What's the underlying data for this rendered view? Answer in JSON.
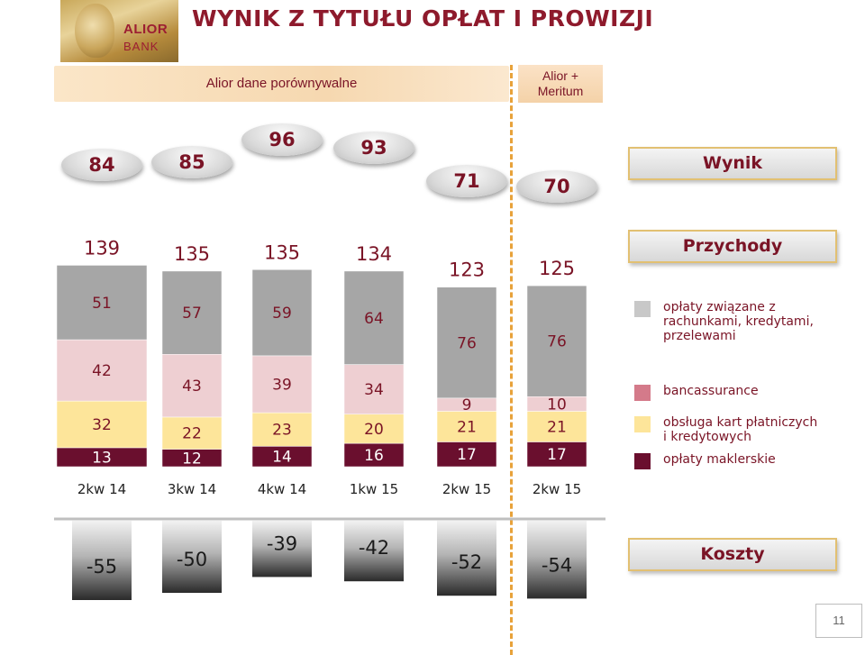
{
  "header": {
    "title": "WYNIK Z TYTUŁU OPŁAT I PROWIZJI",
    "logo_line1": "ALIOR",
    "logo_line2": "BANK",
    "band_label": "Alior dane porównywalne",
    "box_label_line1": "Alior +",
    "box_label_line2": "Meritum"
  },
  "row_labels": {
    "wynik": "Wynik",
    "przychody": "Przychody",
    "koszty": "Koszty"
  },
  "colors": {
    "grey": "#a6a6a6",
    "pink": "#eecfd2",
    "yellow": "#fde59a",
    "maroon": "#6a0f2e",
    "text": "#7a1426",
    "separator": "#e8a23a"
  },
  "chart_data": {
    "type": "bar",
    "stacked": true,
    "categories": [
      "2kw 14",
      "3kw 14",
      "4kw 14",
      "1kw 15",
      "2kw 15",
      "2kw 15"
    ],
    "series": [
      {
        "name": "opłaty maklerskie",
        "color": "#6a0f2e",
        "values": [
          13,
          12,
          14,
          16,
          17,
          17
        ]
      },
      {
        "name": "obsługa kart płatniczych i kredytowych",
        "color": "#fde59a",
        "values": [
          32,
          22,
          23,
          20,
          21,
          21
        ]
      },
      {
        "name": "bancassurance",
        "color": "#eecfd2",
        "values": [
          42,
          43,
          39,
          34,
          9,
          10
        ]
      },
      {
        "name": "opłaty związane z rachunkami, kredytami, przelewami",
        "color": "#a6a6a6",
        "values": [
          51,
          57,
          59,
          64,
          76,
          76
        ]
      }
    ],
    "totals": [
      139,
      135,
      135,
      134,
      123,
      125
    ],
    "wynik": [
      84,
      85,
      96,
      93,
      71,
      70
    ],
    "koszty": [
      -55,
      -50,
      -39,
      -42,
      -52,
      -54
    ],
    "legend_position": "right"
  },
  "legend": [
    {
      "color": "#c8c8c8",
      "lines": [
        "opłaty związane z",
        "rachunkami, kredytami,",
        "przelewami"
      ]
    },
    {
      "color": "#d47a8a",
      "lines": [
        "bancassurance"
      ]
    },
    {
      "color": "#fde59a",
      "lines": [
        "obsługa kart płatniczych",
        "i kredytowych"
      ]
    },
    {
      "color": "#6a0f2e",
      "lines": [
        "opłaty maklerskie"
      ]
    }
  ],
  "page_number": "11"
}
